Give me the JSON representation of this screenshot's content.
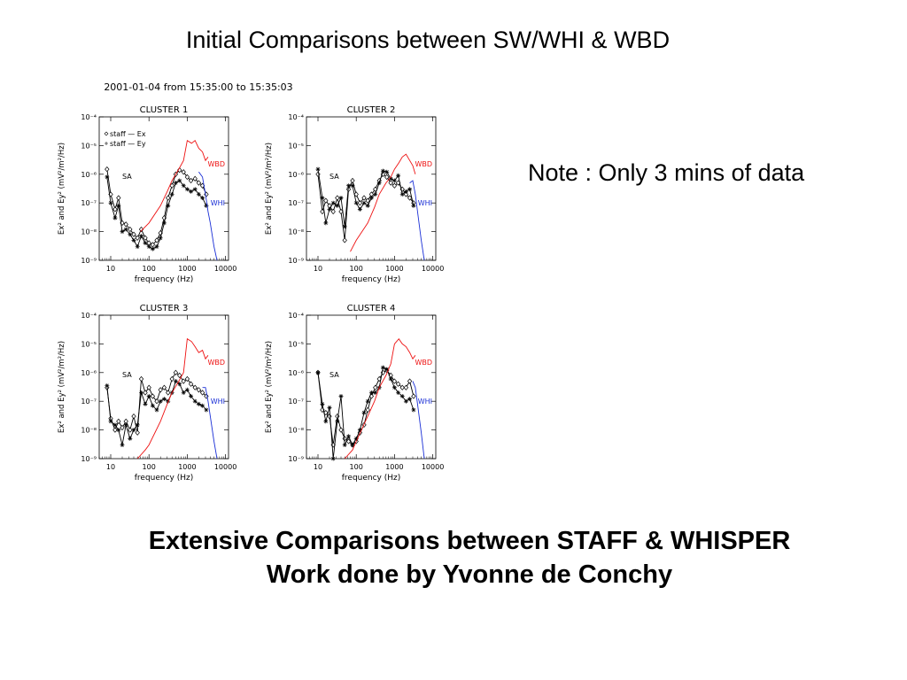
{
  "slide": {
    "title": "Initial Comparisons between SW/WHI & WBD",
    "note": "Note : Only 3 mins of data",
    "bottom_line1": "Extensive Comparisons between STAFF & WHISPER",
    "bottom_line2": "Work done by Yvonne de Conchy"
  },
  "figure": {
    "header": "2001-01-04 from 15:35:00 to 15:35:03"
  },
  "colors": {
    "wbd": "#ee1111",
    "whi": "#1a2fd6",
    "staff": "#000000"
  },
  "chart_data": [
    {
      "type": "line",
      "title": "CLUSTER 1",
      "xlabel": "frequency (Hz)",
      "ylabel": "Ex² and Ey² (mV²/m²/Hz)",
      "xscale": "log",
      "yscale": "log",
      "xlim": [
        5,
        12000
      ],
      "ylim": [
        1e-09,
        0.0001
      ],
      "xticks": [
        "10",
        "100",
        "1000",
        "10000"
      ],
      "yticks": [
        "10⁻⁹",
        "10⁻⁸",
        "10⁻⁷",
        "10⁻⁶",
        "10⁻⁵",
        "10⁻⁴"
      ],
      "legend": [
        "staff — Ex",
        "staff — Ey"
      ],
      "annotations": [
        "SA",
        "WBD",
        "WHI"
      ],
      "series": [
        {
          "name": "staff — Ex",
          "marker": "diamond",
          "x": [
            8,
            10,
            13,
            16,
            20,
            25,
            32,
            40,
            50,
            63,
            80,
            100,
            125,
            160,
            200,
            250,
            315,
            400,
            500,
            630,
            800,
            1000,
            1250,
            1600,
            2000,
            2500,
            3150
          ],
          "y": [
            1.5e-06,
            2e-07,
            6e-08,
            1.5e-07,
            2e-08,
            1.8e-08,
            1.2e-08,
            8e-09,
            6e-09,
            1.2e-08,
            6e-09,
            4e-09,
            3.5e-09,
            5e-09,
            9e-09,
            3e-08,
            1.5e-07,
            4e-07,
            1e-06,
            1.4e-06,
            1.2e-06,
            8e-07,
            6e-07,
            7e-07,
            5e-07,
            4e-07,
            2e-07
          ]
        },
        {
          "name": "staff — Ey",
          "marker": "asterisk",
          "x": [
            8,
            10,
            13,
            16,
            20,
            25,
            32,
            40,
            50,
            63,
            80,
            100,
            125,
            160,
            200,
            250,
            315,
            400,
            500,
            630,
            800,
            1000,
            1250,
            1600,
            2000,
            2500,
            3150
          ],
          "y": [
            8e-07,
            1e-07,
            3e-08,
            8e-08,
            1e-08,
            1.2e-08,
            8e-09,
            5e-09,
            3e-09,
            7e-09,
            4e-09,
            3e-09,
            2.5e-09,
            3e-09,
            6e-09,
            2e-08,
            8e-08,
            2e-07,
            5e-07,
            6e-07,
            4e-07,
            3e-07,
            2.5e-07,
            3e-07,
            2e-07,
            1.5e-07,
            8e-08
          ]
        },
        {
          "name": "WBD",
          "x": [
            60,
            100,
            200,
            300,
            400,
            600,
            800,
            1000,
            1300,
            1600,
            2000,
            2500,
            3000,
            3500
          ],
          "y": [
            1e-08,
            2e-08,
            8e-08,
            2.5e-07,
            6e-07,
            1.5e-06,
            3e-06,
            1.5e-05,
            1.2e-05,
            1.5e-05,
            8e-06,
            6e-06,
            3e-06,
            4e-06
          ]
        },
        {
          "name": "WHI",
          "x": [
            2000,
            2500,
            3000,
            3500,
            4000,
            5000,
            6000
          ],
          "y": [
            1.2e-06,
            8e-07,
            2e-07,
            5e-08,
            2e-08,
            3e-09,
            1e-09
          ]
        }
      ]
    },
    {
      "type": "line",
      "title": "CLUSTER 2",
      "xlabel": "frequency (Hz)",
      "ylabel": "Ex² and Ey² (mV²/m²/Hz)",
      "xscale": "log",
      "yscale": "log",
      "xlim": [
        5,
        12000
      ],
      "ylim": [
        1e-09,
        0.0001
      ],
      "xticks": [
        "10",
        "100",
        "1000",
        "10000"
      ],
      "yticks": [
        "10⁻⁹",
        "10⁻⁸",
        "10⁻⁷",
        "10⁻⁶",
        "10⁻⁵",
        "10⁻⁴"
      ],
      "annotations": [
        "SA",
        "WBD",
        "WHI"
      ],
      "series": [
        {
          "name": "staff — Ex",
          "marker": "diamond",
          "x": [
            10,
            13,
            16,
            20,
            25,
            32,
            40,
            50,
            63,
            80,
            100,
            125,
            160,
            200,
            250,
            315,
            400,
            500,
            630,
            800,
            1000,
            1250,
            1600,
            2000,
            2500,
            3150
          ],
          "y": [
            1e-06,
            5e-08,
            1.2e-07,
            8e-08,
            5e-08,
            1.5e-07,
            5e-08,
            5e-09,
            3e-07,
            6e-07,
            2e-07,
            1e-07,
            1.5e-07,
            1.2e-07,
            2e-07,
            3e-07,
            6e-07,
            1e-06,
            8e-07,
            5e-07,
            4e-07,
            5e-07,
            3e-07,
            2e-07,
            1.5e-07,
            1e-07
          ]
        },
        {
          "name": "staff — Ey",
          "marker": "asterisk",
          "x": [
            10,
            13,
            16,
            20,
            25,
            32,
            40,
            50,
            63,
            80,
            100,
            125,
            160,
            200,
            250,
            315,
            400,
            500,
            630,
            800,
            1000,
            1250,
            1600,
            2000,
            2500,
            3150
          ],
          "y": [
            1.5e-06,
            1.5e-07,
            2e-08,
            6e-08,
            1e-07,
            8e-08,
            1.5e-07,
            1.5e-08,
            4e-07,
            4e-07,
            1e-07,
            6e-08,
            1e-07,
            8e-08,
            1.5e-07,
            2e-07,
            5e-07,
            1.3e-06,
            1.2e-06,
            7e-07,
            6e-07,
            9e-07,
            2e-07,
            2.5e-07,
            3e-07,
            8e-08
          ]
        },
        {
          "name": "WBD",
          "x": [
            70,
            100,
            200,
            300,
            400,
            600,
            800,
            1000,
            1300,
            1600,
            2000,
            2500,
            3000,
            3500
          ],
          "y": [
            2e-09,
            5e-09,
            2e-08,
            7e-08,
            2e-07,
            5e-07,
            8e-07,
            1.5e-06,
            2.5e-06,
            4e-06,
            5e-06,
            3e-06,
            2e-06,
            1e-06
          ]
        },
        {
          "name": "WHI",
          "x": [
            2500,
            3000,
            3500,
            4000,
            5000,
            6000
          ],
          "y": [
            5e-07,
            6e-07,
            2e-07,
            5e-08,
            5e-09,
            1e-09
          ]
        }
      ]
    },
    {
      "type": "line",
      "title": "CLUSTER 3",
      "xlabel": "frequency (Hz)",
      "ylabel": "Ex² and Ey² (mV²/m²/Hz)",
      "xscale": "log",
      "yscale": "log",
      "xlim": [
        5,
        12000
      ],
      "ylim": [
        1e-09,
        0.0001
      ],
      "xticks": [
        "10",
        "100",
        "1000",
        "10000"
      ],
      "yticks": [
        "10⁻⁹",
        "10⁻⁸",
        "10⁻⁷",
        "10⁻⁶",
        "10⁻⁵",
        "10⁻⁴"
      ],
      "annotations": [
        "SA",
        "WBD",
        "WHI"
      ],
      "series": [
        {
          "name": "staff — Ex",
          "marker": "diamond",
          "x": [
            8,
            10,
            13,
            16,
            20,
            25,
            32,
            40,
            50,
            63,
            80,
            100,
            125,
            160,
            200,
            250,
            315,
            400,
            500,
            630,
            800,
            1000,
            1250,
            1600,
            2000,
            2500,
            3150
          ],
          "y": [
            3e-07,
            2.5e-08,
            1e-08,
            2e-08,
            1.2e-08,
            2e-08,
            1e-08,
            3e-08,
            8e-09,
            6e-07,
            2e-07,
            3e-07,
            1.5e-07,
            1e-07,
            2.5e-07,
            3e-07,
            2e-07,
            6e-07,
            1e-06,
            8e-07,
            5e-07,
            6e-07,
            4e-07,
            3e-07,
            2.5e-07,
            2e-07,
            1.5e-07
          ]
        },
        {
          "name": "staff — Ey",
          "marker": "asterisk",
          "x": [
            8,
            10,
            13,
            16,
            20,
            25,
            32,
            40,
            50,
            63,
            80,
            100,
            125,
            160,
            200,
            250,
            315,
            400,
            500,
            630,
            800,
            1000,
            1250,
            1600,
            2000,
            2500,
            3150
          ],
          "y": [
            3.5e-07,
            2e-08,
            1.5e-08,
            1e-08,
            3e-09,
            1.5e-08,
            5e-09,
            1e-08,
            1.5e-08,
            2e-07,
            8e-08,
            1.5e-07,
            7e-08,
            5e-08,
            1e-07,
            1.2e-07,
            1e-07,
            2e-07,
            5e-07,
            4e-07,
            2e-07,
            2.5e-07,
            1.5e-07,
            1e-07,
            8e-08,
            7e-08,
            5e-08
          ]
        },
        {
          "name": "WBD",
          "x": [
            50,
            80,
            100,
            200,
            300,
            400,
            600,
            800,
            1000,
            1300,
            1600,
            2000,
            2500,
            3000,
            3500
          ],
          "y": [
            1e-09,
            2e-09,
            3e-09,
            2e-08,
            8e-08,
            2e-07,
            5e-07,
            1e-06,
            1.5e-05,
            1.2e-05,
            8e-06,
            5e-06,
            6e-06,
            3e-06,
            4e-06
          ]
        },
        {
          "name": "WHI",
          "x": [
            2500,
            3000,
            3500,
            4000,
            5000,
            6000
          ],
          "y": [
            3e-07,
            3e-07,
            1e-07,
            3e-08,
            4e-09,
            1e-09
          ]
        }
      ]
    },
    {
      "type": "line",
      "title": "CLUSTER 4",
      "xlabel": "frequency (Hz)",
      "ylabel": "Ex² and Ey² (mV²/m²/Hz)",
      "xscale": "log",
      "yscale": "log",
      "xlim": [
        5,
        12000
      ],
      "ylim": [
        1e-09,
        0.0001
      ],
      "xticks": [
        "10",
        "100",
        "1000",
        "10000"
      ],
      "yticks": [
        "10⁻⁹",
        "10⁻⁸",
        "10⁻⁷",
        "10⁻⁶",
        "10⁻⁵",
        "10⁻⁴"
      ],
      "annotations": [
        "SA",
        "WBD",
        "WHI"
      ],
      "series": [
        {
          "name": "staff — Ex",
          "marker": "diamond",
          "x": [
            10,
            13,
            16,
            20,
            25,
            32,
            40,
            50,
            63,
            80,
            100,
            125,
            160,
            200,
            250,
            315,
            400,
            500,
            630,
            800,
            1000,
            1250,
            1600,
            2000,
            2500,
            3150
          ],
          "y": [
            1e-06,
            5e-08,
            4e-08,
            3e-08,
            3e-09,
            3e-08,
            1e-08,
            5e-09,
            4e-09,
            3e-09,
            4e-09,
            8e-09,
            1.5e-08,
            5e-08,
            1.5e-07,
            3e-07,
            6e-07,
            1e-06,
            1.2e-06,
            8e-07,
            5e-07,
            4e-07,
            3e-07,
            3e-07,
            5e-07,
            1.5e-07
          ]
        },
        {
          "name": "staff — Ey",
          "marker": "asterisk",
          "x": [
            10,
            13,
            16,
            20,
            25,
            32,
            40,
            50,
            63,
            80,
            100,
            125,
            160,
            200,
            250,
            315,
            400,
            500,
            630,
            800,
            1000,
            1250,
            1600,
            2000,
            2500,
            3150
          ],
          "y": [
            1e-06,
            8e-08,
            2e-08,
            6e-08,
            1e-09,
            2e-08,
            1.5e-07,
            3e-09,
            6e-09,
            3e-09,
            5e-09,
            1e-08,
            4e-08,
            1e-07,
            2e-07,
            2e-07,
            3e-07,
            1.5e-06,
            1.3e-06,
            6e-07,
            3e-07,
            2e-07,
            1.5e-07,
            1e-07,
            1.2e-07,
            5e-08
          ]
        },
        {
          "name": "WBD",
          "x": [
            50,
            80,
            100,
            200,
            300,
            400,
            600,
            800,
            1000,
            1300,
            1600,
            2000,
            2500,
            3000,
            3500
          ],
          "y": [
            1e-09,
            2e-09,
            4e-09,
            3e-08,
            1e-07,
            3e-07,
            8e-07,
            2e-06,
            1e-05,
            1.5e-05,
            1e-05,
            8e-06,
            5e-06,
            3e-06,
            4e-06
          ]
        },
        {
          "name": "WHI",
          "x": [
            3000,
            3500,
            4000,
            5000,
            6000
          ],
          "y": [
            5e-07,
            3e-07,
            8e-08,
            8e-09,
            1e-09
          ]
        }
      ]
    }
  ]
}
